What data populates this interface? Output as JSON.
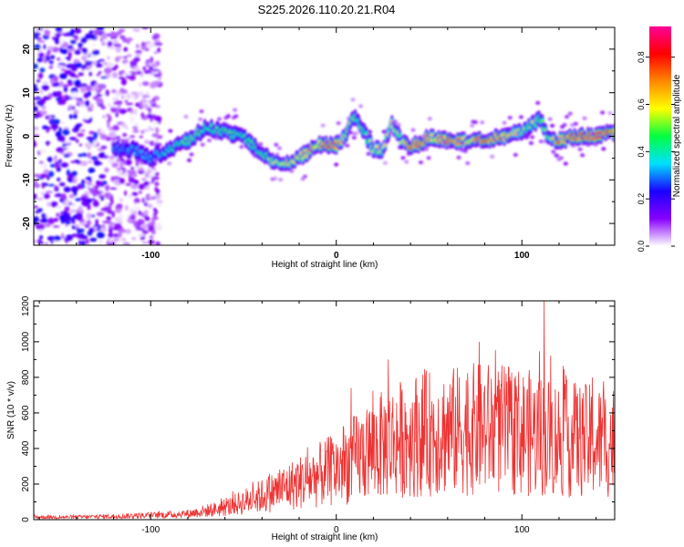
{
  "title": "S225.2026.110.20.21.R04",
  "chart_data": [
    {
      "type": "heatmap",
      "xlabel": "Height of straight line (km)",
      "ylabel": "Frequency (Hz)",
      "xlim": [
        -163,
        150
      ],
      "ylim": [
        -25,
        25
      ],
      "xticks": [
        -100,
        0,
        100
      ],
      "yticks": [
        -20,
        -10,
        0,
        10,
        20
      ],
      "colorbar": {
        "label": "Normalized spectral amplitude",
        "range": [
          0,
          0.93
        ],
        "ticks": [
          0.0,
          0.2,
          0.4,
          0.6,
          0.8
        ],
        "colors": [
          "#ffffff",
          "#8800ff",
          "#1a00ff",
          "#00e0ff",
          "#00ff40",
          "#ffff00",
          "#ff8800",
          "#ff0000",
          "#ff0099"
        ]
      },
      "ridge": {
        "x": [
          -120,
          -110,
          -100,
          -90,
          -80,
          -70,
          -60,
          -50,
          -40,
          -30,
          -20,
          -10,
          0,
          5,
          10,
          15,
          20,
          25,
          30,
          35,
          40,
          45,
          50,
          60,
          70,
          80,
          90,
          100,
          110,
          115,
          120,
          130,
          140,
          150
        ],
        "freq": [
          -3,
          -3,
          -5,
          -3,
          -1,
          2,
          1,
          0,
          -4,
          -7,
          -5,
          -2,
          -2,
          0,
          5,
          1,
          -3,
          -3,
          3,
          -1,
          -2,
          -2,
          0,
          -1,
          -1,
          -1,
          0,
          1,
          4,
          -1,
          -1,
          0,
          0,
          1
        ],
        "amp": [
          0.3,
          0.35,
          0.35,
          0.45,
          0.55,
          0.5,
          0.5,
          0.5,
          0.5,
          0.65,
          0.7,
          0.75,
          0.85,
          0.55,
          0.55,
          0.5,
          0.6,
          0.6,
          0.65,
          0.55,
          0.85,
          0.9,
          0.7,
          0.8,
          0.7,
          0.8,
          0.75,
          0.6,
          0.55,
          0.55,
          0.8,
          0.85,
          0.9,
          0.8
        ]
      },
      "noise_extent": [
        -163,
        -105
      ]
    },
    {
      "type": "line",
      "xlabel": "Height of straight line (km)",
      "ylabel": "SNR (10 * v/v)",
      "xlim": [
        -163,
        150
      ],
      "ylim": [
        0,
        1230
      ],
      "xticks": [
        -100,
        0,
        100
      ],
      "yticks": [
        0,
        200,
        400,
        600,
        800,
        1000,
        1200
      ],
      "color": "#ee3333",
      "series": [
        {
          "name": "SNR",
          "envelope_x": [
            -163,
            -140,
            -120,
            -100,
            -80,
            -60,
            -40,
            -20,
            0,
            20,
            40,
            60,
            80,
            100,
            120,
            140,
            150
          ],
          "envelope_mean": [
            15,
            15,
            20,
            25,
            35,
            70,
            140,
            220,
            300,
            420,
            500,
            520,
            540,
            520,
            480,
            460,
            470
          ],
          "peaks": [
            {
              "x": 8,
              "y": 740
            },
            {
              "x": 28,
              "y": 900
            },
            {
              "x": 77,
              "y": 1000
            },
            {
              "x": 112,
              "y": 1230
            },
            {
              "x": 138,
              "y": 800
            }
          ]
        }
      ]
    }
  ]
}
